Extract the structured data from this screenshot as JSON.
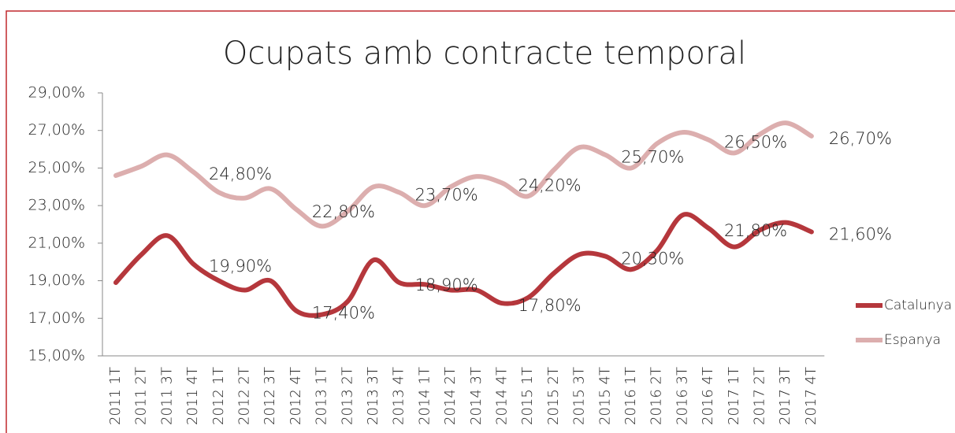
{
  "chart_data": {
    "type": "line",
    "title": "Ocupats amb contracte temporal",
    "categories": [
      "2011 1T",
      "2011 2T",
      "2011 3T",
      "2011 4T",
      "2012 1T",
      "2012 2T",
      "2012 3T",
      "2012 4T",
      "2013 1T",
      "2013 2T",
      "2013 3T",
      "2013 4T",
      "2014 1T",
      "2014 2T",
      "2014 3T",
      "2014 4T",
      "2015 1T",
      "2015 2T",
      "2015 3T",
      "2015 4T",
      "2016 1T",
      "2016 2T",
      "2016 3T",
      "2016 4T",
      "2017 1T",
      "2017 2T",
      "2017 3T",
      "2017 4T"
    ],
    "series": [
      {
        "name": "Catalunya",
        "color": "#b5373c",
        "values": [
          18.9,
          20.4,
          21.4,
          19.9,
          19.0,
          18.5,
          19.0,
          17.4,
          17.2,
          17.9,
          20.1,
          18.9,
          18.8,
          18.5,
          18.5,
          17.8,
          18.1,
          19.4,
          20.4,
          20.3,
          19.6,
          20.6,
          22.5,
          21.8,
          20.8,
          21.7,
          22.1,
          21.6
        ],
        "value_labels": [
          null,
          null,
          null,
          "19,90%",
          null,
          null,
          null,
          "17,40%",
          null,
          null,
          null,
          "18,90%",
          null,
          null,
          null,
          "17,80%",
          null,
          null,
          null,
          "20,30%",
          null,
          null,
          null,
          "21,80%",
          null,
          null,
          null,
          "21,60%"
        ]
      },
      {
        "name": "Espanya",
        "color": "#dcaeae",
        "values": [
          24.6,
          25.1,
          25.7,
          24.8,
          23.7,
          23.4,
          23.9,
          22.8,
          21.9,
          22.7,
          24.0,
          23.7,
          23.0,
          24.0,
          24.55,
          24.2,
          23.5,
          24.9,
          26.1,
          25.7,
          25.0,
          26.3,
          26.9,
          26.5,
          25.8,
          26.8,
          27.4,
          26.7
        ],
        "value_labels": [
          null,
          null,
          null,
          "24,80%",
          null,
          null,
          null,
          "22,80%",
          null,
          null,
          null,
          "23,70%",
          null,
          null,
          null,
          "24,20%",
          null,
          null,
          null,
          "25,70%",
          null,
          null,
          null,
          "26,50%",
          null,
          null,
          null,
          "26,70%"
        ]
      }
    ],
    "ylim": [
      15,
      29
    ],
    "yticks": [
      {
        "value": 15,
        "label": "15,00%"
      },
      {
        "value": 17,
        "label": "17,00%"
      },
      {
        "value": 19,
        "label": "19,00%"
      },
      {
        "value": 21,
        "label": "21,00%"
      },
      {
        "value": 23,
        "label": "23,00%"
      },
      {
        "value": 25,
        "label": "25,00%"
      },
      {
        "value": 27,
        "label": "27,00%"
      },
      {
        "value": 29,
        "label": "29,00%"
      }
    ],
    "grid": false,
    "legend": "right"
  }
}
